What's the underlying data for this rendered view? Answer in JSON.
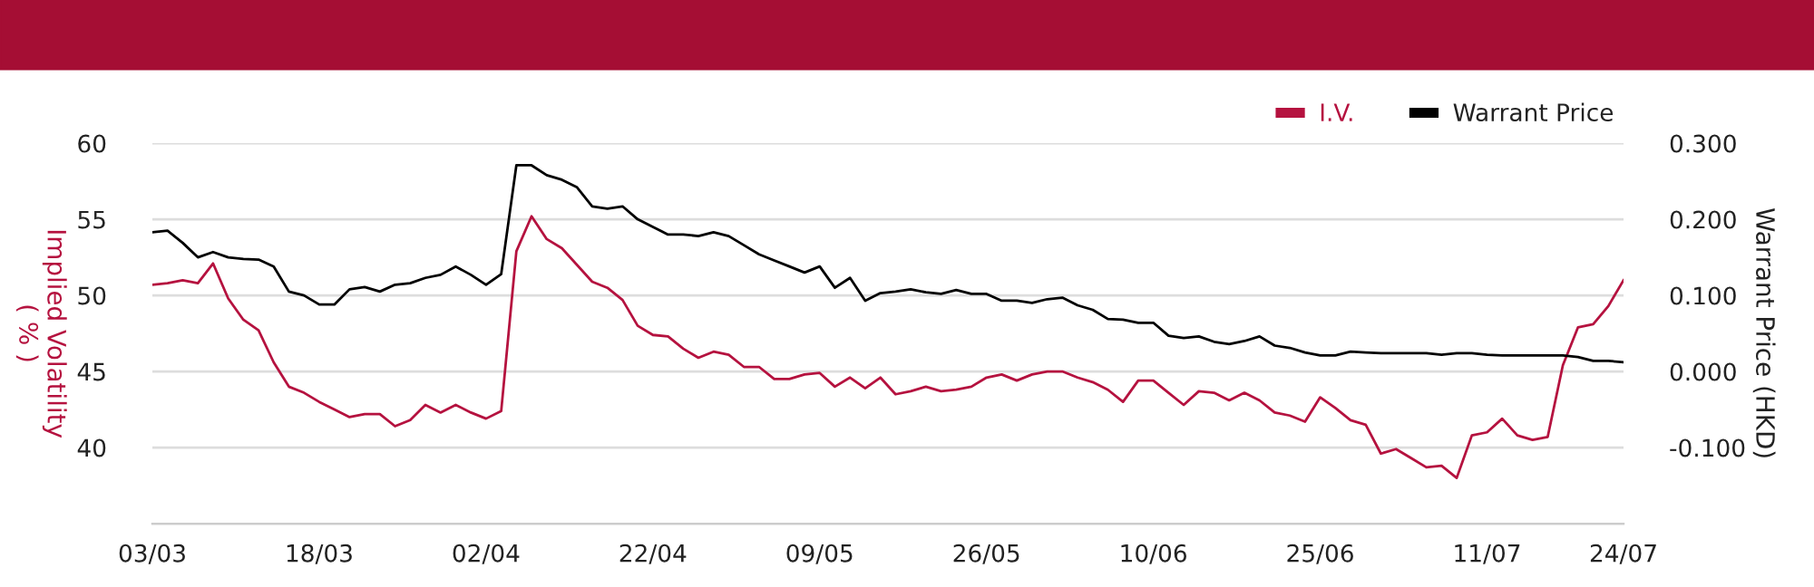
{
  "chart_data": {
    "type": "line",
    "ylabel": "Implied Volatility\n( % )",
    "y2label": "Warrant Price (HKD)",
    "categories": [
      "03/03",
      null,
      null,
      null,
      null,
      null,
      null,
      null,
      null,
      null,
      null,
      "18/03",
      null,
      null,
      null,
      null,
      null,
      null,
      null,
      null,
      null,
      null,
      "02/04",
      null,
      null,
      null,
      null,
      null,
      null,
      null,
      null,
      null,
      null,
      "22/04",
      null,
      null,
      null,
      null,
      null,
      null,
      null,
      null,
      null,
      null,
      "09/05",
      null,
      null,
      null,
      null,
      null,
      null,
      null,
      null,
      null,
      null,
      "26/05",
      null,
      null,
      null,
      null,
      null,
      null,
      null,
      null,
      null,
      null,
      "10/06",
      null,
      null,
      null,
      null,
      null,
      null,
      null,
      null,
      null,
      null,
      "25/06",
      null,
      null,
      null,
      null,
      null,
      null,
      null,
      null,
      null,
      null,
      "11/07",
      null,
      null,
      null,
      null,
      null,
      null,
      null,
      null,
      "24/07"
    ],
    "series": [
      {
        "name": "I.V.",
        "color": "#b5123f",
        "values": [
          50.7,
          50.8,
          51.0,
          50.8,
          52.1,
          49.8,
          48.4,
          47.7,
          45.6,
          44.0,
          43.6,
          43.0,
          42.5,
          42.0,
          42.2,
          42.2,
          41.4,
          41.8,
          42.8,
          42.3,
          42.8,
          42.3,
          41.9,
          42.4,
          52.9,
          55.2,
          53.7,
          53.1,
          52.0,
          50.9,
          50.5,
          49.7,
          48.0,
          47.4,
          47.3,
          46.5,
          45.9,
          46.3,
          46.1,
          45.3,
          45.3,
          44.5,
          44.5,
          44.8,
          44.9,
          44.0,
          44.6,
          43.9,
          44.6,
          43.5,
          43.7,
          44.0,
          43.7,
          43.8,
          44.0,
          44.6,
          44.8,
          44.4,
          44.8,
          45.0,
          45.0,
          44.6,
          44.3,
          43.8,
          43.0,
          44.4,
          44.4,
          43.6,
          42.8,
          43.7,
          43.6,
          43.1,
          43.6,
          43.1,
          42.3,
          42.1,
          41.7,
          43.3,
          42.6,
          41.8,
          41.5,
          39.6,
          39.9,
          39.3,
          38.7,
          38.8,
          38.0,
          40.8,
          41.0,
          41.9,
          40.8,
          40.5,
          40.7,
          45.4,
          47.9,
          48.1,
          49.3,
          51.0
        ]
      },
      {
        "name": "Warrant Price",
        "color": "#000000",
        "axis": "y2",
        "values": [
          0.183,
          0.185,
          0.169,
          0.15,
          0.157,
          0.15,
          0.148,
          0.147,
          0.138,
          0.105,
          0.1,
          0.088,
          0.088,
          0.108,
          0.111,
          0.105,
          0.114,
          0.116,
          0.123,
          0.127,
          0.138,
          0.127,
          0.114,
          0.128,
          0.271,
          0.271,
          0.258,
          0.252,
          0.242,
          0.217,
          0.214,
          0.217,
          0.2,
          0.19,
          0.18,
          0.18,
          0.178,
          0.183,
          0.178,
          0.166,
          0.154,
          0.146,
          0.138,
          0.13,
          0.138,
          0.11,
          0.123,
          0.093,
          0.103,
          0.105,
          0.108,
          0.104,
          0.102,
          0.107,
          0.102,
          0.102,
          0.093,
          0.093,
          0.09,
          0.095,
          0.097,
          0.087,
          0.081,
          0.069,
          0.068,
          0.064,
          0.064,
          0.047,
          0.044,
          0.046,
          0.039,
          0.036,
          0.04,
          0.046,
          0.034,
          0.031,
          0.025,
          0.021,
          0.021,
          0.026,
          0.025,
          0.024,
          0.024,
          0.024,
          0.024,
          0.022,
          0.024,
          0.024,
          0.022,
          0.021,
          0.021,
          0.021,
          0.021,
          0.021,
          0.019,
          0.014,
          0.014,
          0.012
        ]
      }
    ],
    "ylim": [
      35,
      60
    ],
    "yticks": [
      40,
      45,
      50,
      55,
      60
    ],
    "y2lim": [
      -0.2,
      0.3
    ],
    "y2ticks": [
      {
        "value": -0.1,
        "label": "-0.100"
      },
      {
        "value": 0,
        "label": "0.000"
      },
      {
        "value": 0.1,
        "label": "0.100"
      },
      {
        "value": 0.2,
        "label": "0.200"
      },
      {
        "value": 0.3,
        "label": "0.300"
      }
    ],
    "grid": "y",
    "legend": "top right",
    "marker": "none",
    "line_style": "solid"
  }
}
